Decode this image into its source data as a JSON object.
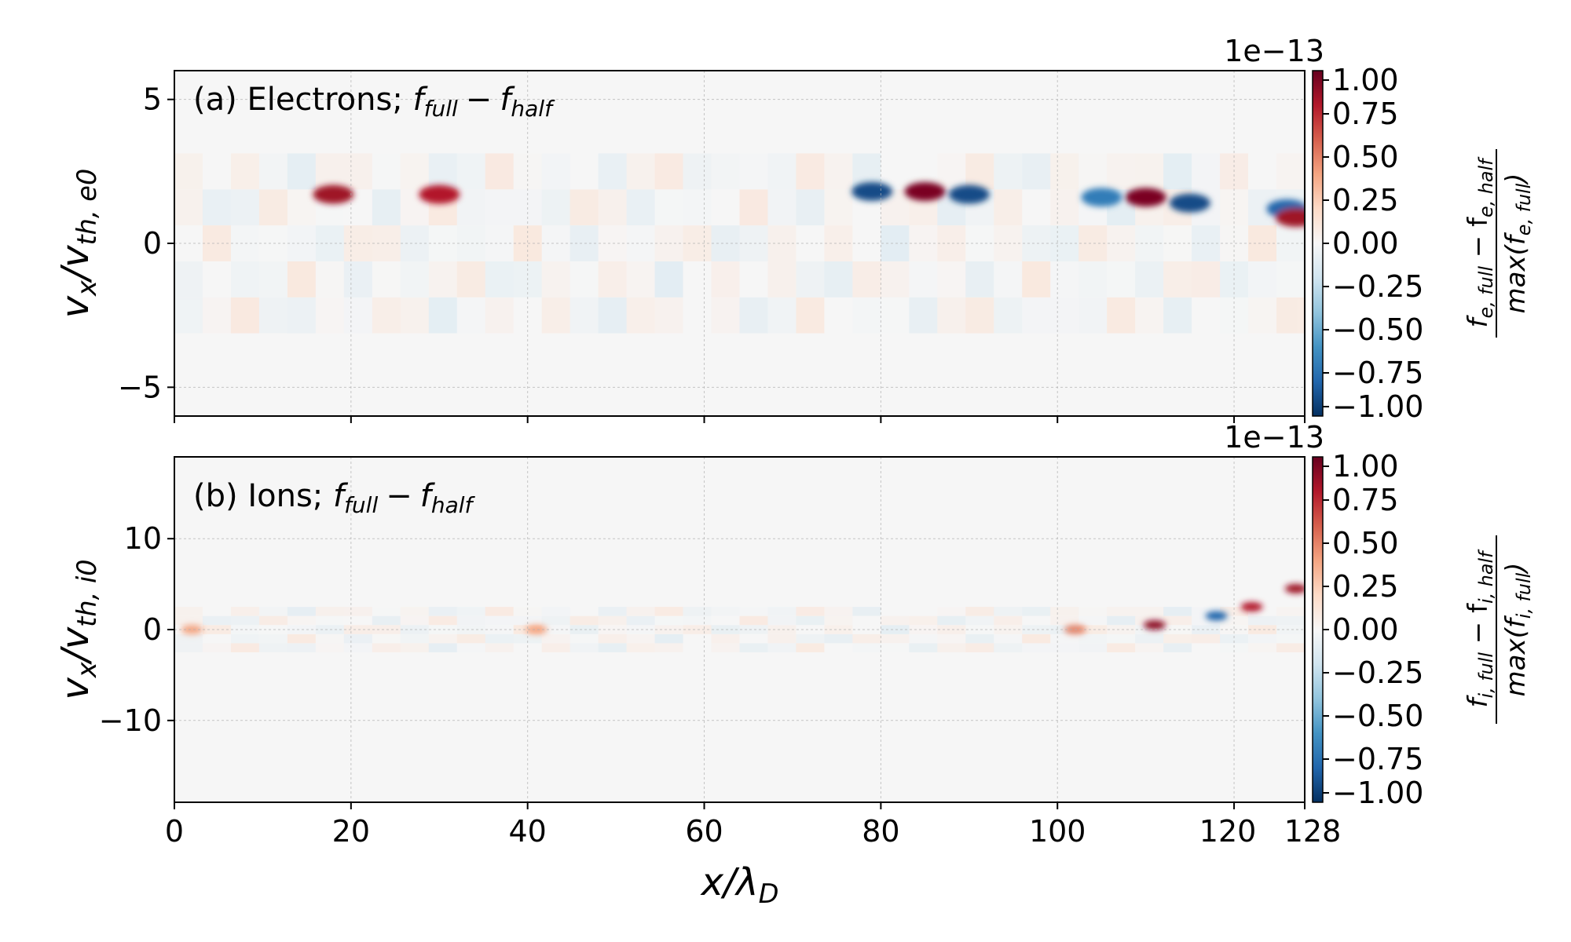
{
  "chart_data": [
    {
      "type": "heatmap",
      "panel": "a",
      "annotation_prefix": "(a) Electrons; ",
      "annotation_math": {
        "f": "f",
        "sub1": "full",
        "minus": "−",
        "sub2": "half"
      },
      "xlim": [
        0,
        128
      ],
      "ylim": [
        -6,
        6
      ],
      "yticks": [
        "5",
        "0",
        "−5"
      ],
      "ytick_values": [
        5,
        0,
        -5
      ],
      "xticks": [
        0,
        20,
        40,
        60,
        80,
        100,
        120,
        128
      ],
      "ylabel": {
        "main": "v",
        "sub1": "x",
        "slash": "/v",
        "sub2": "th, e0"
      },
      "grid": true,
      "colormap": "RdBu_r",
      "colorbar": {
        "offset_text": "1e−13",
        "ticks": [
          "1.00",
          "0.75",
          "0.50",
          "0.25",
          "0.00",
          "−0.25",
          "−0.50",
          "−0.75",
          "−1.00"
        ],
        "tick_values": [
          1.0,
          0.75,
          0.5,
          0.25,
          0.0,
          -0.25,
          -0.5,
          -0.75,
          -1.0
        ],
        "range": [
          -1.0,
          1.0
        ],
        "label_num": {
          "f": "f",
          "sub1": "e, full",
          "minus": " − f",
          "sub2": "e, half"
        },
        "label_den": {
          "pre": "max(f",
          "sub": "e, full",
          "post": ")"
        }
      },
      "features": [
        {
          "x": 18,
          "v": 1.7,
          "amp": 0.85
        },
        {
          "x": 30,
          "v": 1.7,
          "amp": 0.8
        },
        {
          "x": 79,
          "v": 1.8,
          "amp": -0.9
        },
        {
          "x": 85,
          "v": 1.8,
          "amp": 0.95
        },
        {
          "x": 90,
          "v": 1.7,
          "amp": -0.9
        },
        {
          "x": 105,
          "v": 1.6,
          "amp": -0.7
        },
        {
          "x": 110,
          "v": 1.6,
          "amp": 0.95
        },
        {
          "x": 115,
          "v": 1.4,
          "amp": -0.9
        },
        {
          "x": 126,
          "v": 1.2,
          "amp": -0.8
        },
        {
          "x": 127,
          "v": 0.9,
          "amp": 0.85
        }
      ]
    },
    {
      "type": "heatmap",
      "panel": "b",
      "annotation_prefix": "(b) Ions; ",
      "annotation_math": {
        "f": "f",
        "sub1": "full",
        "minus": "−",
        "sub2": "half"
      },
      "xlim": [
        0,
        128
      ],
      "ylim": [
        -19,
        19
      ],
      "yticks": [
        "10",
        "0",
        "−10"
      ],
      "ytick_values": [
        10,
        0,
        -10
      ],
      "xticks": [
        0,
        20,
        40,
        60,
        80,
        100,
        120,
        128
      ],
      "xlabel": {
        "main": "x/λ",
        "sub": "D"
      },
      "ylabel": {
        "main": "v",
        "sub1": "x",
        "slash": "/v",
        "sub2": "th, i0"
      },
      "grid": true,
      "colormap": "RdBu_r",
      "colorbar": {
        "offset_text": "1e−13",
        "ticks": [
          "1.00",
          "0.75",
          "0.50",
          "0.25",
          "0.00",
          "−0.25",
          "−0.50",
          "−0.75",
          "−1.00"
        ],
        "tick_values": [
          1.0,
          0.75,
          0.5,
          0.25,
          0.0,
          -0.25,
          -0.5,
          -0.75,
          -1.0
        ],
        "range": [
          -1.0,
          1.0
        ],
        "label_num": {
          "f": "f",
          "sub1": "i, full",
          "minus": " − f",
          "sub2": "i, half"
        },
        "label_den": {
          "pre": "max(f",
          "sub": "i, full",
          "post": ")"
        }
      },
      "features": [
        {
          "x": 2,
          "v": 0,
          "amp": 0.4
        },
        {
          "x": 41,
          "v": 0,
          "amp": 0.4
        },
        {
          "x": 102,
          "v": 0,
          "amp": 0.5
        },
        {
          "x": 111,
          "v": 0.5,
          "amp": 0.9
        },
        {
          "x": 118,
          "v": 1.5,
          "amp": -0.8
        },
        {
          "x": 122,
          "v": 2.5,
          "amp": 0.8
        },
        {
          "x": 127,
          "v": 4.5,
          "amp": 0.85
        }
      ]
    }
  ]
}
